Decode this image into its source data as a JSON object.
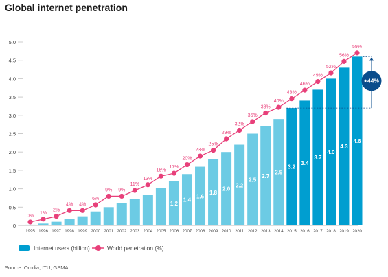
{
  "title": "Global internet penetration",
  "source": "Source: Omdia, ITU, GSMA",
  "colors": {
    "bar_light": "#6ccbe4",
    "bar_dark": "#009ed0",
    "line": "#e8407a",
    "badge": "#0a4d8c",
    "axis_text": "#444444",
    "gridline": "#cccccc"
  },
  "chart_data": {
    "type": "bar",
    "categories": [
      "1995",
      "1996",
      "1997",
      "1998",
      "1999",
      "2000",
      "2001",
      "2002",
      "2003",
      "2004",
      "2005",
      "2006",
      "2007",
      "2008",
      "2009",
      "2010",
      "2011",
      "2012",
      "2013",
      "2014",
      "2015",
      "2016",
      "2017",
      "2018",
      "2019",
      "2020"
    ],
    "series": [
      {
        "name": "Internet users (billion)",
        "chart_type": "bar",
        "axis": "left",
        "values": [
          0.02,
          0.05,
          0.1,
          0.17,
          0.25,
          0.38,
          0.5,
          0.6,
          0.72,
          0.83,
          1.02,
          1.2,
          1.4,
          1.6,
          1.8,
          2.0,
          2.2,
          2.5,
          2.7,
          2.9,
          3.2,
          3.4,
          3.7,
          4.0,
          4.3,
          4.6
        ],
        "data_labels": [
          "",
          "",
          "",
          "",
          "",
          "",
          "",
          "",
          "",
          "",
          "",
          "1.2",
          "1.4",
          "1.6",
          "1.8",
          "2.0",
          "2.2",
          "2.5",
          "2.7",
          "2.9",
          "3.2",
          "3.4",
          "3.7",
          "4.0",
          "4.3",
          "4.6"
        ],
        "highlight_from_index": 20
      },
      {
        "name": "World penetration (%)",
        "chart_type": "line",
        "axis": "right",
        "values": [
          0,
          1,
          2,
          4,
          4,
          6,
          9,
          9,
          11,
          13,
          16,
          17,
          20,
          23,
          25,
          29,
          32,
          35,
          38,
          40,
          43,
          46,
          49,
          52,
          56,
          59
        ],
        "data_labels": [
          "0%",
          "1%",
          "2%",
          "4%",
          "4%",
          "6%",
          "9%",
          "9%",
          "11%",
          "13%",
          "16%",
          "17%",
          "20%",
          "23%",
          "25%",
          "29%",
          "32%",
          "35%",
          "38%",
          "40%",
          "43%",
          "46%",
          "49%",
          "52%",
          "56%",
          "59%"
        ]
      }
    ],
    "y_ticks": [
      "5.0",
      "4.5",
      "4.0",
      "3.5",
      "3.0",
      "2.5",
      "2.0",
      "1.5",
      "1.0",
      "0.5",
      "0"
    ],
    "ylim": [
      0,
      5.0
    ],
    "y2lim": [
      0,
      64
    ],
    "grid": false,
    "legend_position": "bottom-left",
    "annotation": {
      "text": "+44%",
      "from_category": "2015",
      "to_category": "2020",
      "from_value": 3.2,
      "to_value": 4.6
    }
  }
}
